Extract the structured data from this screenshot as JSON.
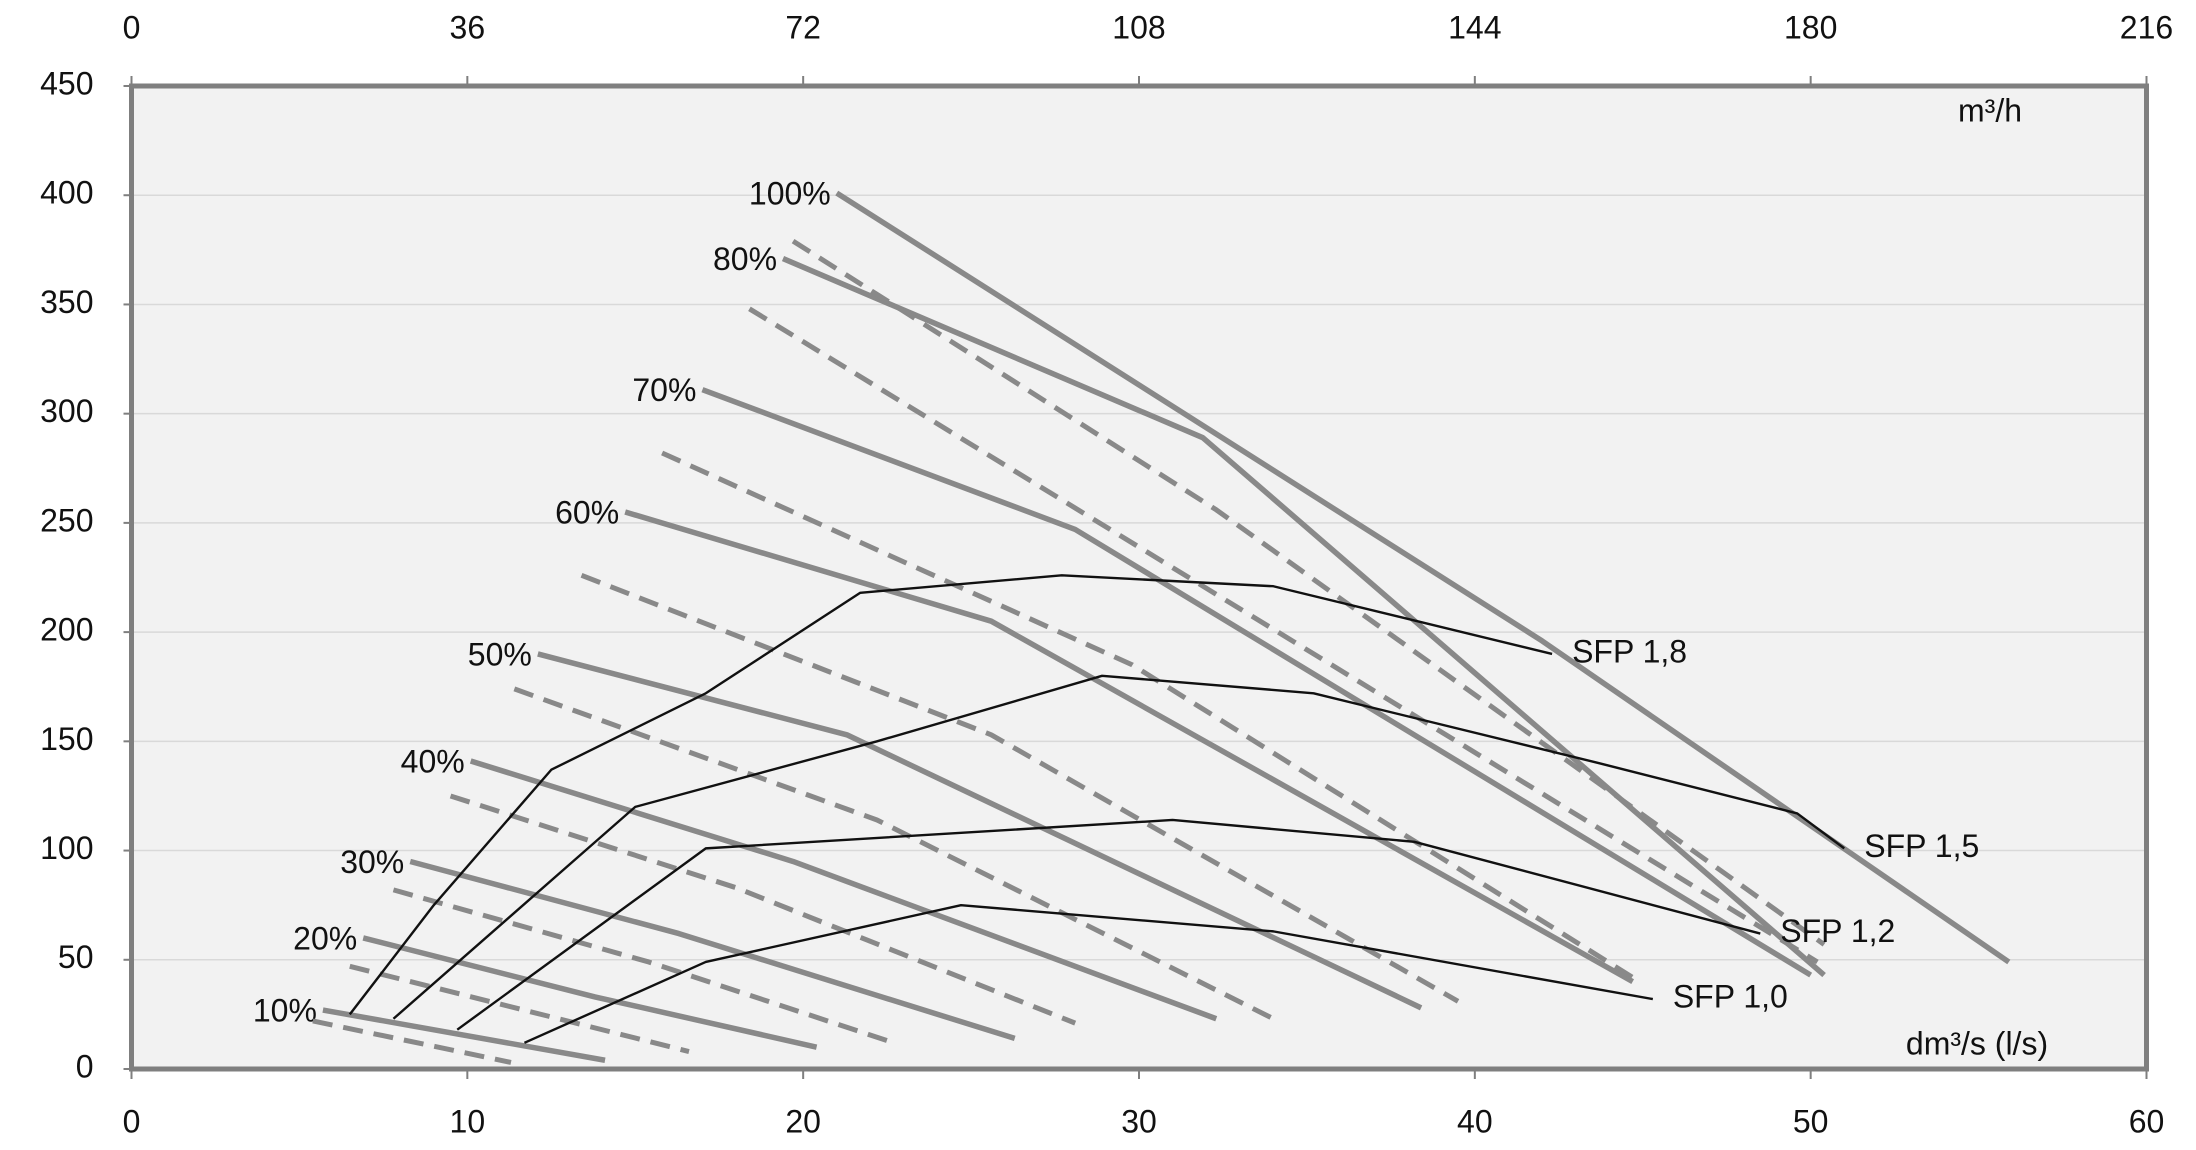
{
  "chart_data": {
    "type": "line",
    "x_unit_label": "dm³/s (l/s)",
    "x2_unit_label": "m³/h",
    "xlim": [
      0,
      60
    ],
    "xticks": [
      0,
      10,
      20,
      30,
      40,
      50,
      60
    ],
    "x2lim": [
      0,
      216
    ],
    "x2ticks": [
      0,
      36,
      72,
      108,
      144,
      180,
      216
    ],
    "ylim": [
      0,
      450
    ],
    "yticks": [
      0,
      50,
      100,
      150,
      200,
      250,
      300,
      350,
      400,
      450
    ],
    "grid": true,
    "series": [
      {
        "name": "10%",
        "color": "#898989",
        "line_style": "solid",
        "x": [
          5.7,
          14.1
        ],
        "values": [
          27,
          4
        ]
      },
      {
        "color": "#898989",
        "line_style": "dashed",
        "x": [
          5.4,
          11.3
        ],
        "values": [
          22,
          3
        ]
      },
      {
        "name": "20%",
        "color": "#898989",
        "line_style": "solid",
        "x": [
          6.9,
          13.8,
          20.4
        ],
        "values": [
          60,
          33,
          10
        ]
      },
      {
        "color": "#898989",
        "line_style": "dashed",
        "x": [
          6.5,
          16.6
        ],
        "values": [
          47,
          8
        ]
      },
      {
        "name": "30%",
        "color": "#898989",
        "line_style": "solid",
        "x": [
          8.3,
          16.3,
          26.3
        ],
        "values": [
          95,
          62,
          14
        ]
      },
      {
        "color": "#898989",
        "line_style": "dashed",
        "x": [
          7.8,
          15.4,
          22.7
        ],
        "values": [
          82,
          49,
          12
        ]
      },
      {
        "name": "40%",
        "color": "#898989",
        "line_style": "solid",
        "x": [
          10.1,
          19.7,
          32.3
        ],
        "values": [
          141,
          95,
          23
        ]
      },
      {
        "color": "#898989",
        "line_style": "dashed",
        "x": [
          9.5,
          18.0,
          28.1
        ],
        "values": [
          125,
          83,
          21
        ]
      },
      {
        "name": "50%",
        "color": "#898989",
        "line_style": "solid",
        "x": [
          12.1,
          21.3,
          38.4
        ],
        "values": [
          190,
          153,
          28
        ]
      },
      {
        "color": "#898989",
        "line_style": "dashed",
        "x": [
          11.4,
          22.2,
          34.0
        ],
        "values": [
          174,
          114,
          23
        ]
      },
      {
        "name": "60%",
        "color": "#898989",
        "line_style": "solid",
        "x": [
          14.7,
          25.6,
          44.7
        ],
        "values": [
          255,
          205,
          40
        ]
      },
      {
        "color": "#898989",
        "line_style": "dashed",
        "x": [
          13.4,
          25.6,
          39.5
        ],
        "values": [
          226,
          153,
          31
        ]
      },
      {
        "color": "#898989",
        "line_style": "dashed",
        "x": [
          15.8,
          29.8,
          44.9
        ],
        "values": [
          282,
          185,
          40
        ]
      },
      {
        "name": "70%",
        "color": "#898989",
        "line_style": "solid",
        "x": [
          17.0,
          28.1,
          50.0
        ],
        "values": [
          311,
          247,
          43
        ]
      },
      {
        "color": "#898989",
        "line_style": "dashed",
        "x": [
          18.4,
          50.2
        ],
        "values": [
          348,
          49
        ]
      },
      {
        "name": "80%",
        "color": "#898989",
        "line_style": "solid",
        "x": [
          19.4,
          31.9,
          50.4
        ],
        "values": [
          371,
          289,
          43
        ]
      },
      {
        "color": "#898989",
        "line_style": "dashed",
        "x": [
          19.7,
          32.3,
          50.4
        ],
        "values": [
          379,
          256,
          57
        ]
      },
      {
        "name": "100%",
        "color": "#898989",
        "line_style": "solid",
        "x": [
          21.0,
          42.0,
          55.9
        ],
        "values": [
          401,
          196,
          49
        ]
      },
      {
        "name": "SFP 1,8",
        "color": "#111111",
        "line_style": "thin",
        "x": [
          6.5,
          9.0,
          12.5,
          17.1,
          21.7,
          27.7,
          34.0,
          42.3
        ],
        "values": [
          25,
          75,
          137,
          172,
          218,
          226,
          221,
          190
        ]
      },
      {
        "name": "SFP 1,5",
        "color": "#111111",
        "line_style": "thin",
        "x": [
          7.8,
          15.0,
          22.2,
          28.9,
          35.2,
          43.7,
          49.6,
          51.0
        ],
        "values": [
          23,
          120,
          150,
          180,
          172,
          140,
          117,
          101
        ]
      },
      {
        "name": "SFP 1,2",
        "color": "#111111",
        "line_style": "thin",
        "x": [
          9.7,
          17.1,
          31.0,
          38.2,
          48.5
        ],
        "values": [
          18,
          101,
          114,
          104,
          62
        ]
      },
      {
        "name": "SFP 1,0",
        "color": "#111111",
        "line_style": "thin",
        "x": [
          11.7,
          17.1,
          24.7,
          34.0,
          45.3
        ],
        "values": [
          12,
          49,
          75,
          63,
          32
        ]
      }
    ]
  }
}
